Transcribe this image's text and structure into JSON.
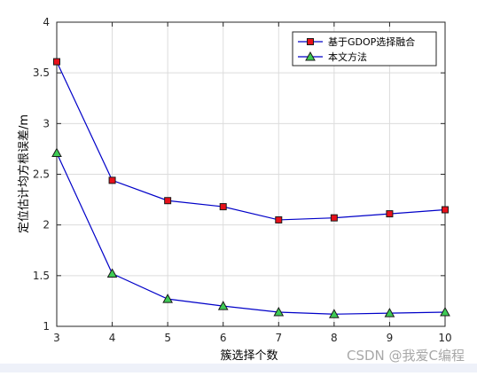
{
  "chart_data": {
    "type": "line",
    "title": "",
    "xlabel": "簇选择个数",
    "ylabel": "定位估计均方根误差/m",
    "xlim": [
      3,
      10
    ],
    "ylim": [
      1,
      4
    ],
    "x": [
      3,
      4,
      5,
      6,
      7,
      8,
      9,
      10
    ],
    "xticks": [
      "3",
      "4",
      "5",
      "6",
      "7",
      "8",
      "9",
      "10"
    ],
    "yticks": [
      "1",
      "1.5",
      "2",
      "2.5",
      "3",
      "3.5",
      "4"
    ],
    "grid": true,
    "legend_position": "top-right",
    "series": [
      {
        "name": "基于GDOP选择融合",
        "marker": "square",
        "line_color": "#0000c8",
        "marker_fill": "#e8101a",
        "values": [
          3.61,
          2.44,
          2.24,
          2.18,
          2.05,
          2.07,
          2.11,
          2.15
        ]
      },
      {
        "name": "本文方法",
        "marker": "triangle",
        "line_color": "#0000c8",
        "marker_fill": "#3ecb55",
        "values": [
          2.71,
          1.52,
          1.27,
          1.2,
          1.14,
          1.12,
          1.13,
          1.14
        ]
      }
    ]
  },
  "watermark": "CSDN @我爱C编程"
}
